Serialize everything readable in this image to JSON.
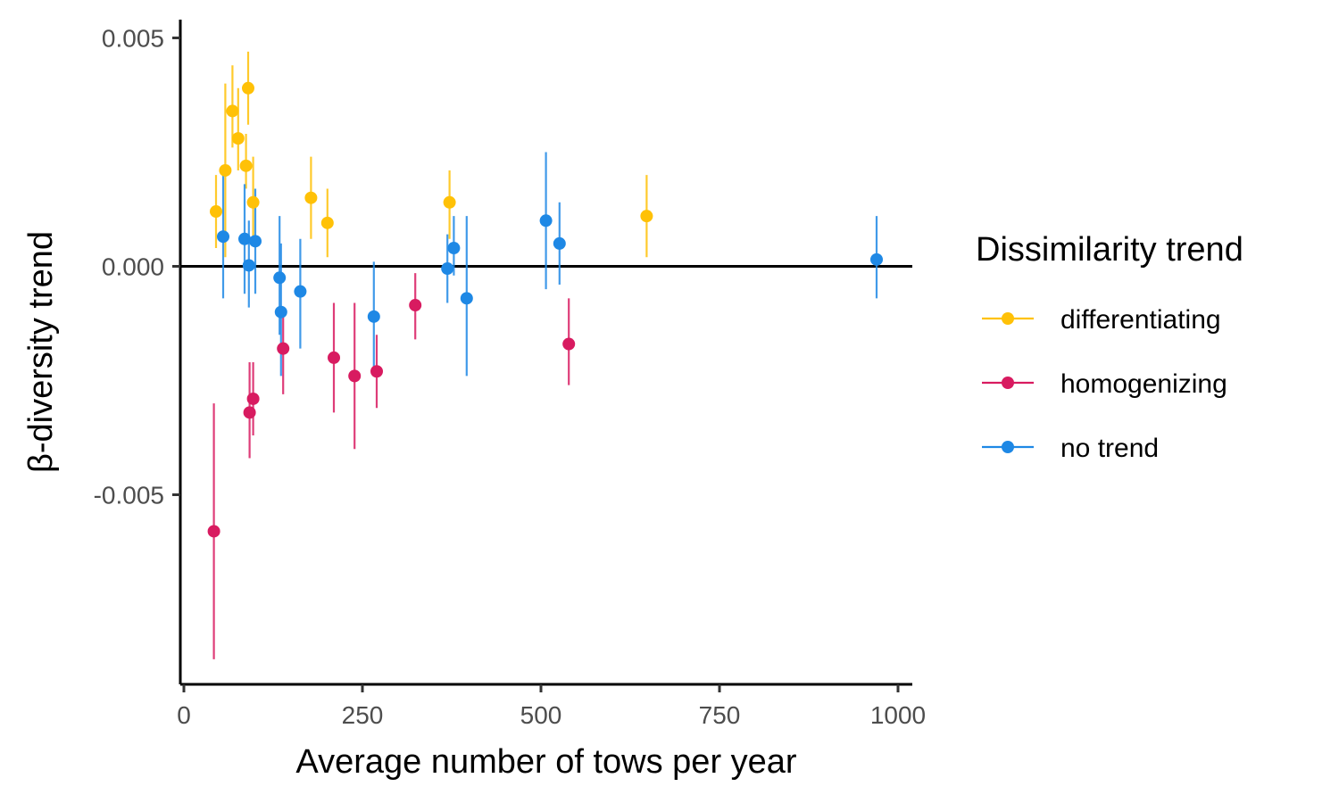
{
  "chart_data": {
    "type": "scatter",
    "xlabel": "Average number of tows per year",
    "ylabel": "β-diversity trend",
    "xlim": [
      -5,
      1020
    ],
    "ylim": [
      -0.00915,
      0.0054
    ],
    "x_ticks": [
      0,
      250,
      500,
      750,
      1000
    ],
    "x_tick_labels": [
      "0",
      "250",
      "500",
      "750",
      "1000"
    ],
    "y_ticks": [
      0.005,
      0.0,
      -0.005
    ],
    "y_tick_labels": [
      "0.005",
      "0.000",
      "-0.005"
    ],
    "reference_line_y": 0,
    "grid": false,
    "legend": {
      "title": "Dissimilarity trend",
      "position": "right",
      "entries": [
        "differentiating",
        "homogenizing",
        "no trend"
      ]
    },
    "series": [
      {
        "name": "differentiating",
        "color": "#FFC107",
        "points": [
          {
            "x": 45,
            "y": 0.0012,
            "lo": 0.0004,
            "hi": 0.002
          },
          {
            "x": 58,
            "y": 0.0021,
            "lo": 0.0002,
            "hi": 0.004
          },
          {
            "x": 68,
            "y": 0.0034,
            "lo": 0.0026,
            "hi": 0.0044
          },
          {
            "x": 76,
            "y": 0.0028,
            "lo": 0.0021,
            "hi": 0.0039
          },
          {
            "x": 87,
            "y": 0.0022,
            "lo": 0.0017,
            "hi": 0.0029
          },
          {
            "x": 90,
            "y": 0.0039,
            "lo": 0.0031,
            "hi": 0.0047
          },
          {
            "x": 97,
            "y": 0.0014,
            "lo": 0.0006,
            "hi": 0.0024
          },
          {
            "x": 178,
            "y": 0.0015,
            "lo": 0.0006,
            "hi": 0.0024
          },
          {
            "x": 201,
            "y": 0.00095,
            "lo": 0.0002,
            "hi": 0.0017
          },
          {
            "x": 372,
            "y": 0.0014,
            "lo": 0.0006,
            "hi": 0.0021
          },
          {
            "x": 648,
            "y": 0.0011,
            "lo": 0.0002,
            "hi": 0.002
          }
        ]
      },
      {
        "name": "homogenizing",
        "color": "#D81B60",
        "points": [
          {
            "x": 42,
            "y": -0.0058,
            "lo": -0.0086,
            "hi": -0.003
          },
          {
            "x": 92,
            "y": -0.0032,
            "lo": -0.0042,
            "hi": -0.0021
          },
          {
            "x": 97,
            "y": -0.0029,
            "lo": -0.0037,
            "hi": -0.0021
          },
          {
            "x": 139,
            "y": -0.0018,
            "lo": -0.0028,
            "hi": -0.0009
          },
          {
            "x": 210,
            "y": -0.002,
            "lo": -0.0032,
            "hi": -0.0008
          },
          {
            "x": 239,
            "y": -0.0024,
            "lo": -0.004,
            "hi": -0.0008
          },
          {
            "x": 270,
            "y": -0.0023,
            "lo": -0.0031,
            "hi": -0.0015
          },
          {
            "x": 324,
            "y": -0.00085,
            "lo": -0.0016,
            "hi": -0.00015
          },
          {
            "x": 539,
            "y": -0.0017,
            "lo": -0.0026,
            "hi": -0.0007
          }
        ]
      },
      {
        "name": "no trend",
        "color": "#1E88E5",
        "points": [
          {
            "x": 55,
            "y": 0.00065,
            "lo": -0.0007,
            "hi": 0.002
          },
          {
            "x": 85,
            "y": 0.0006,
            "lo": -0.0006,
            "hi": 0.0018
          },
          {
            "x": 91,
            "y": 2e-05,
            "lo": -0.0009,
            "hi": 0.001
          },
          {
            "x": 100,
            "y": 0.00055,
            "lo": -0.0006,
            "hi": 0.0017
          },
          {
            "x": 134,
            "y": -0.00025,
            "lo": -0.0015,
            "hi": 0.0011
          },
          {
            "x": 136,
            "y": -0.001,
            "lo": -0.0024,
            "hi": 0.0005
          },
          {
            "x": 163,
            "y": -0.00055,
            "lo": -0.0018,
            "hi": 0.0006
          },
          {
            "x": 266,
            "y": -0.0011,
            "lo": -0.0022,
            "hi": 0.0001
          },
          {
            "x": 369,
            "y": -5e-05,
            "lo": -0.0008,
            "hi": 0.0007
          },
          {
            "x": 378,
            "y": 0.0004,
            "lo": -0.0002,
            "hi": 0.0011
          },
          {
            "x": 396,
            "y": -0.0007,
            "lo": -0.0024,
            "hi": 0.0011
          },
          {
            "x": 507,
            "y": 0.001,
            "lo": -0.0005,
            "hi": 0.0025
          },
          {
            "x": 526,
            "y": 0.0005,
            "lo": -0.0004,
            "hi": 0.0014
          },
          {
            "x": 970,
            "y": 0.00015,
            "lo": -0.0007,
            "hi": 0.0011
          }
        ]
      }
    ]
  }
}
